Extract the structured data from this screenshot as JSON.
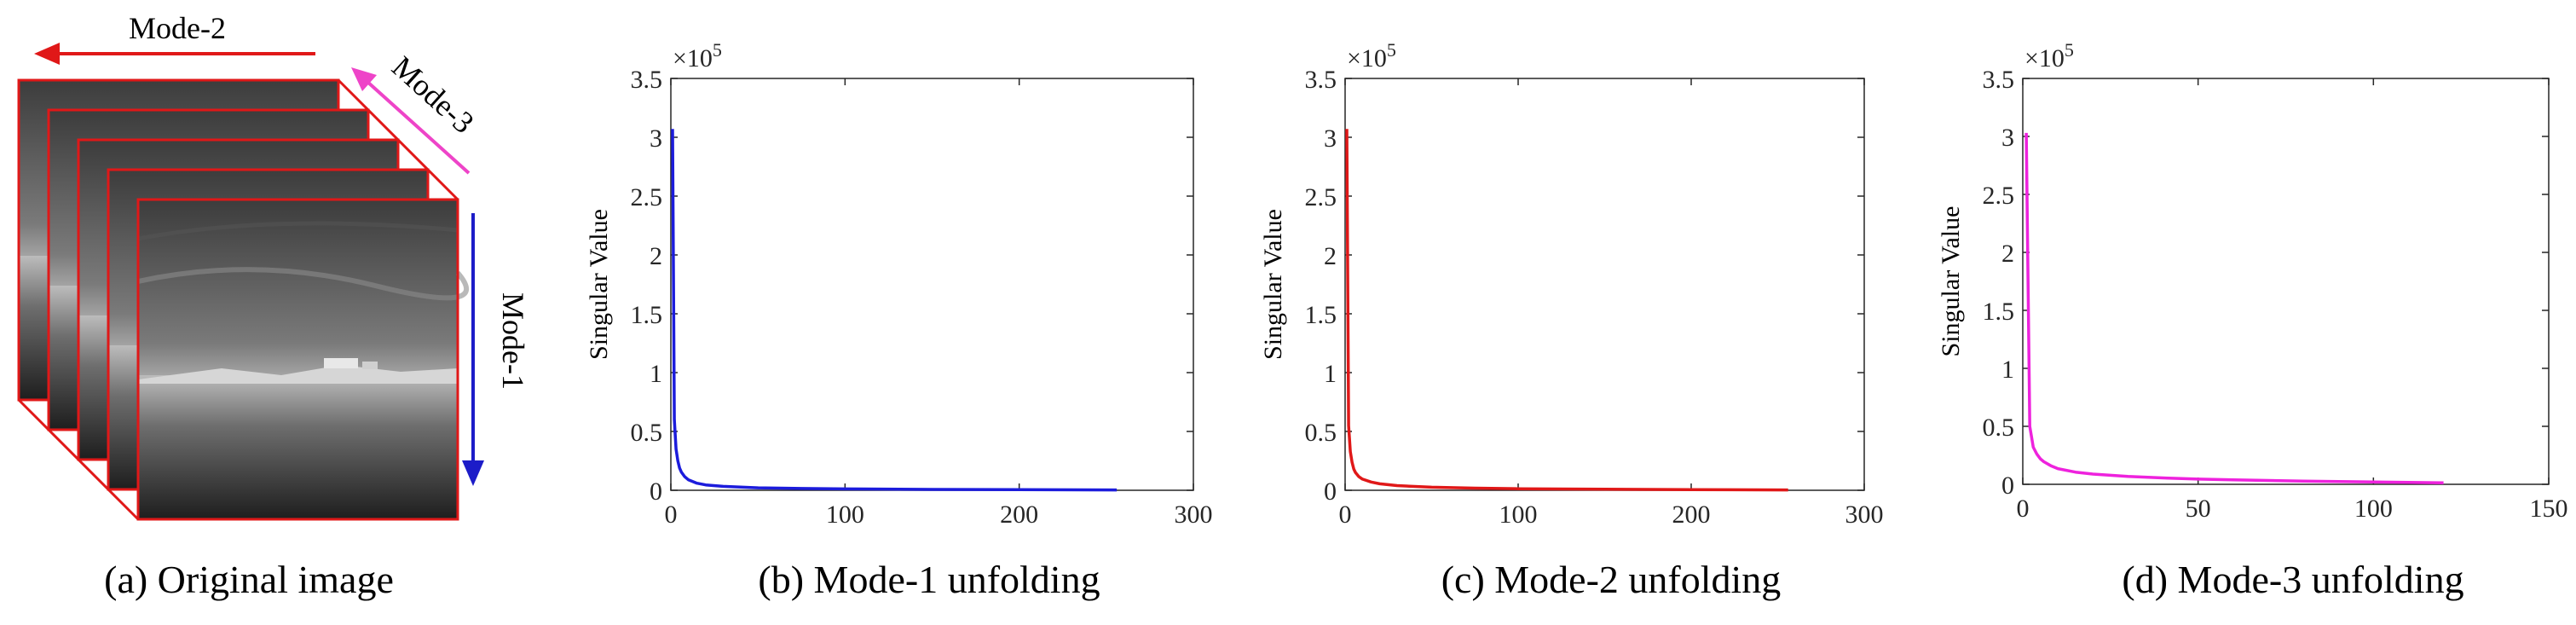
{
  "panels": {
    "a": {
      "caption": "(a) Original image"
    },
    "b": {
      "caption": "(b) Mode-1 unfolding"
    },
    "c": {
      "caption": "(c) Mode-2 unfolding"
    },
    "d": {
      "caption": "(d) Mode-3 unfolding"
    }
  },
  "cube": {
    "mode1_label": "Mode-1",
    "mode2_label": "Mode-2",
    "mode3_label": "Mode-3",
    "colors": {
      "mode1": "#1c1cc8",
      "mode2": "#e01818",
      "mode3": "#ee44c8",
      "frame": "#e01818"
    }
  },
  "chart_data": [
    {
      "type": "line",
      "panel": "b",
      "title": "",
      "xlabel": "",
      "ylabel": "Singular Value",
      "scale_label": "×10",
      "scale_exponent": "5",
      "xlim": [
        0,
        300
      ],
      "ylim": [
        0,
        350000
      ],
      "xticks": [
        0,
        100,
        200,
        300
      ],
      "yticks": [
        0,
        50000,
        100000,
        150000,
        200000,
        250000,
        300000,
        350000
      ],
      "ytick_labels": [
        "0",
        "0.5",
        "1",
        "1.5",
        "2",
        "2.5",
        "3",
        "3.5"
      ],
      "grid": false,
      "series": [
        {
          "color": "#1c1cdc",
          "x": [
            1,
            2,
            3,
            4,
            5,
            6,
            8,
            10,
            15,
            20,
            30,
            50,
            75,
            100,
            150,
            200,
            256
          ],
          "y": [
            307000,
            60000,
            35000,
            25000,
            19000,
            15500,
            11500,
            9000,
            6000,
            4600,
            3300,
            2100,
            1500,
            1150,
            750,
            500,
            280
          ]
        }
      ]
    },
    {
      "type": "line",
      "panel": "c",
      "title": "",
      "xlabel": "",
      "ylabel": "Singular Value",
      "scale_label": "×10",
      "scale_exponent": "5",
      "xlim": [
        0,
        300
      ],
      "ylim": [
        0,
        350000
      ],
      "xticks": [
        0,
        100,
        200,
        300
      ],
      "yticks": [
        0,
        50000,
        100000,
        150000,
        200000,
        250000,
        300000,
        350000
      ],
      "ytick_labels": [
        "0",
        "0.5",
        "1",
        "1.5",
        "2",
        "2.5",
        "3",
        "3.5"
      ],
      "grid": false,
      "series": [
        {
          "color": "#e01818",
          "x": [
            1,
            2,
            3,
            4,
            5,
            6,
            8,
            10,
            15,
            20,
            30,
            50,
            75,
            100,
            150,
            200,
            256
          ],
          "y": [
            307000,
            55000,
            33000,
            24000,
            18000,
            15000,
            11500,
            9500,
            7000,
            5500,
            4000,
            2600,
            1800,
            1300,
            850,
            550,
            300
          ]
        }
      ]
    },
    {
      "type": "line",
      "panel": "d",
      "title": "",
      "xlabel": "",
      "ylabel": "Singular Value",
      "scale_label": "×10",
      "scale_exponent": "5",
      "xlim": [
        0,
        150
      ],
      "ylim": [
        0,
        350000
      ],
      "xticks": [
        0,
        50,
        100,
        150
      ],
      "yticks": [
        0,
        50000,
        100000,
        150000,
        200000,
        250000,
        300000,
        350000
      ],
      "ytick_labels": [
        "0",
        "0.5",
        "1",
        "1.5",
        "2",
        "2.5",
        "3",
        "3.5"
      ],
      "grid": false,
      "series": [
        {
          "color": "#ee22dd",
          "x": [
            1,
            2,
            3,
            4,
            5,
            6,
            8,
            10,
            15,
            20,
            30,
            40,
            50,
            60,
            80,
            100,
            120
          ],
          "y": [
            303000,
            50000,
            32000,
            26000,
            22000,
            19500,
            16000,
            13500,
            10500,
            8800,
            6800,
            5500,
            4500,
            3800,
            2800,
            2000,
            1300
          ]
        }
      ]
    }
  ]
}
